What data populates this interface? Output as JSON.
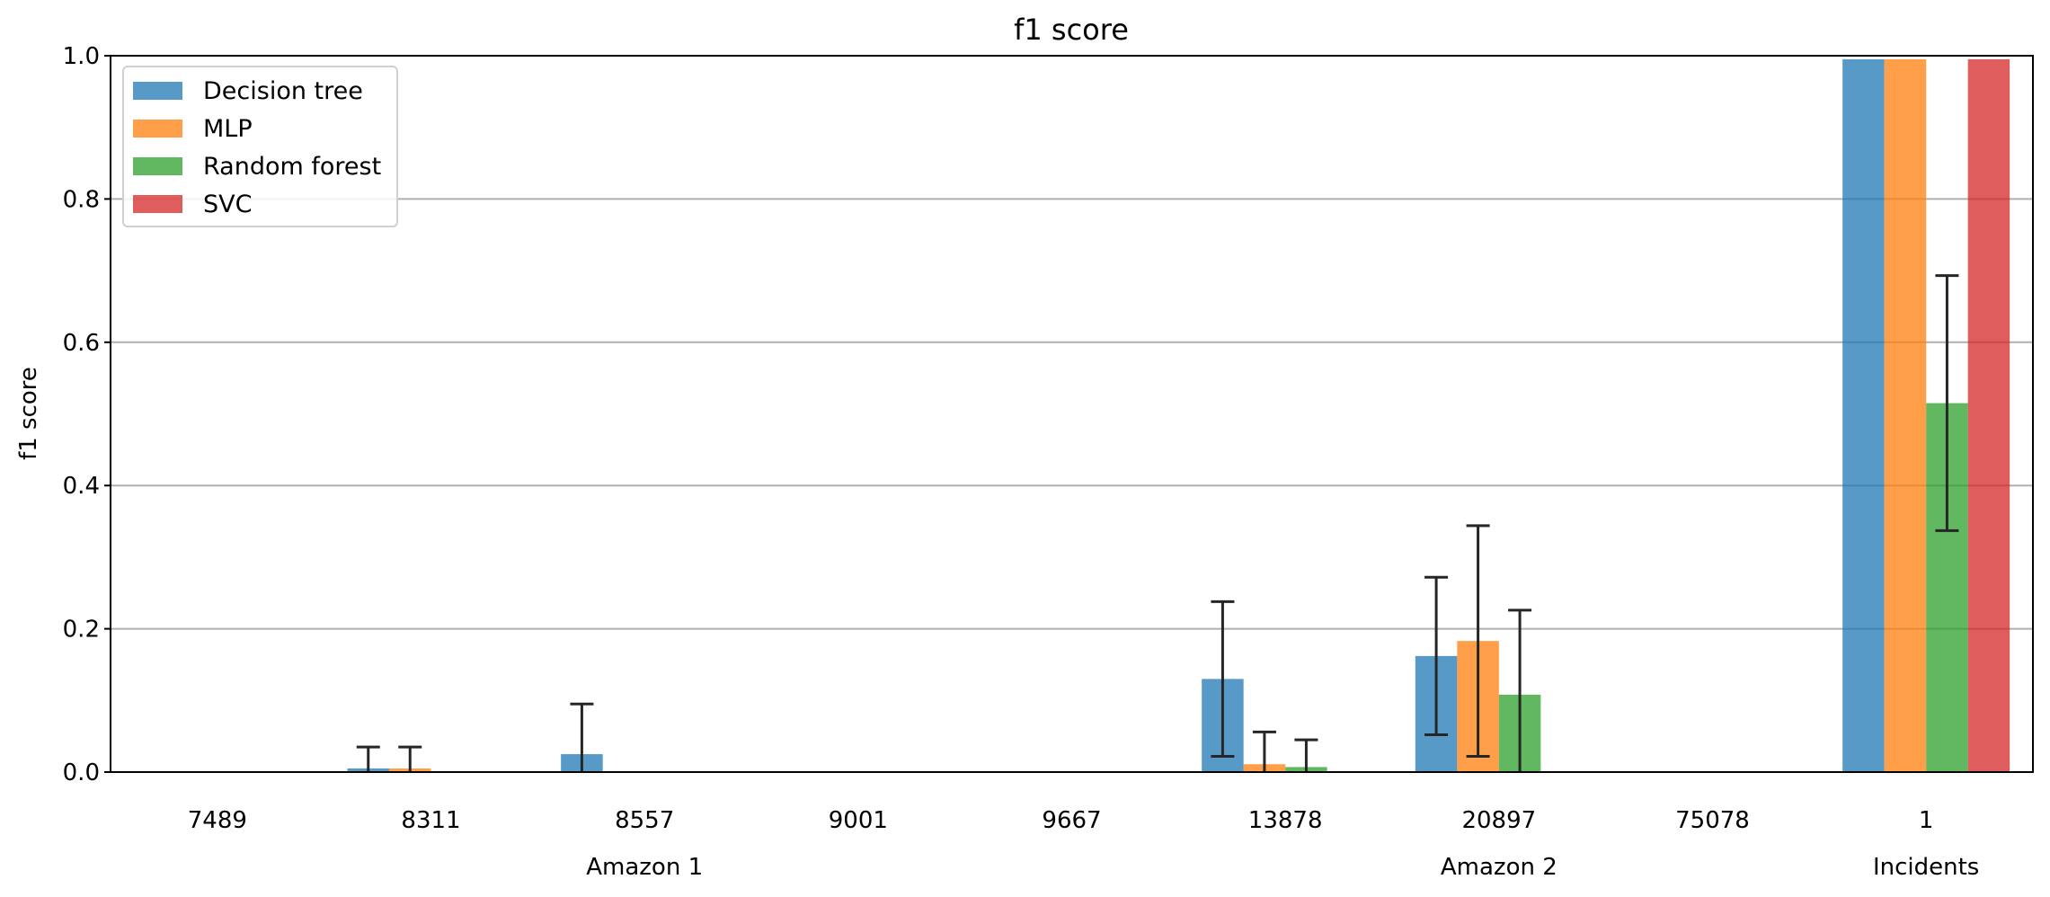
{
  "chart_data": {
    "type": "bar",
    "title": "f1 score",
    "xlabel": "",
    "ylabel": "f1 score",
    "ylim": [
      0,
      1.0
    ],
    "yticks": [
      "0.0",
      "0.2",
      "0.4",
      "0.6",
      "0.8",
      "1.0"
    ],
    "grid": "horizontal",
    "legend_position": "top-left",
    "categories": [
      "7489",
      "8311",
      "8557",
      "9001",
      "9667",
      "13878",
      "20897",
      "75078",
      "1"
    ],
    "groups": [
      {
        "label": "Amazon 1",
        "categories": [
          "7489",
          "8311",
          "8557",
          "9001",
          "9667"
        ]
      },
      {
        "label": "Amazon 2",
        "categories": [
          "13878",
          "20897",
          "75078"
        ]
      },
      {
        "label": "Incidents",
        "categories": [
          "1"
        ]
      }
    ],
    "series": [
      {
        "name": "Decision tree",
        "color": "#1f77b4",
        "values": [
          0,
          0.005,
          0.025,
          0,
          0,
          0.13,
          0.162,
          0,
          0.995
        ],
        "error": [
          0,
          0.03,
          0.07,
          0,
          0,
          0.108,
          0.11,
          0,
          0
        ]
      },
      {
        "name": "MLP",
        "color": "#ff7f0e",
        "values": [
          0,
          0.005,
          0,
          0,
          0,
          0.011,
          0.183,
          0,
          0.995
        ],
        "error": [
          0,
          0.03,
          0,
          0,
          0,
          0.045,
          0.161,
          0,
          0
        ]
      },
      {
        "name": "Random forest",
        "color": "#2ca02c",
        "values": [
          0,
          0,
          0,
          0,
          0,
          0.007,
          0.108,
          0,
          0.515
        ],
        "error": [
          0,
          0,
          0,
          0,
          0,
          0.038,
          0.118,
          0,
          0.178
        ]
      },
      {
        "name": "SVC",
        "color": "#d62728",
        "values": [
          0,
          0,
          0,
          0,
          0,
          0,
          0,
          0,
          0.995
        ],
        "error": [
          0,
          0,
          0,
          0,
          0,
          0,
          0,
          0,
          0
        ]
      }
    ]
  }
}
